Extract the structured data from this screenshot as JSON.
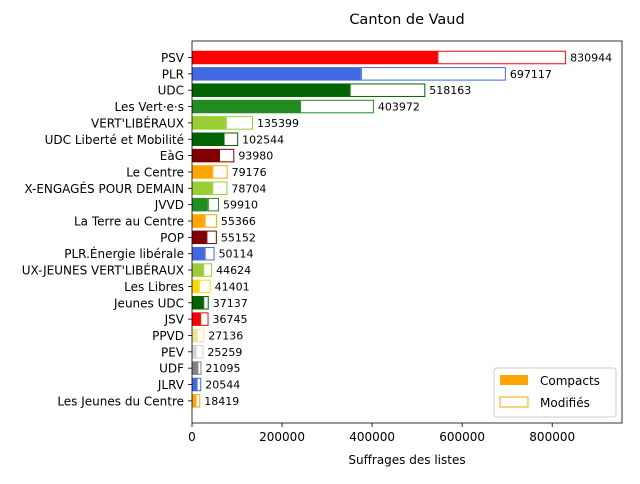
{
  "chart_data": {
    "type": "bar",
    "orientation": "horizontal",
    "stacked": true,
    "title": "Canton de Vaud",
    "xlabel": "Suffrages des listes",
    "ylabel": "",
    "xlim": [
      0,
      955000
    ],
    "xticks": [
      0,
      200000,
      400000,
      600000,
      800000
    ],
    "xtick_labels": [
      "0",
      "200000",
      "400000",
      "600000",
      "800000"
    ],
    "legend": {
      "placement": "lower-right",
      "entries": [
        {
          "label": "Compacts",
          "style": "filled",
          "color": "#ffa500"
        },
        {
          "label": "Modifiés",
          "style": "outline",
          "color": "#ffa500"
        }
      ]
    },
    "categories": [
      {
        "label": "PSV",
        "compact": 545000,
        "total": 830944,
        "total_label": "830944",
        "color": "#ff0000"
      },
      {
        "label": "PLR",
        "compact": 375000,
        "total": 697117,
        "total_label": "697117",
        "color": "#4169e1"
      },
      {
        "label": "UDC",
        "compact": 350000,
        "total": 518163,
        "total_label": "518163",
        "color": "#006400"
      },
      {
        "label": "Les Vert·e·s",
        "compact": 240000,
        "total": 403972,
        "total_label": "403972",
        "color": "#228b22"
      },
      {
        "label": "VERT'LIBÉRAUX",
        "compact": 75000,
        "total": 135399,
        "total_label": "135399",
        "color": "#9acd32"
      },
      {
        "label": "UDC Liberté et Mobilité",
        "compact": 70000,
        "total": 102544,
        "total_label": "102544",
        "color": "#006400"
      },
      {
        "label": "EàG",
        "compact": 60000,
        "total": 93980,
        "total_label": "93980",
        "color": "#800000"
      },
      {
        "label": "Le Centre",
        "compact": 45000,
        "total": 79176,
        "total_label": "79176",
        "color": "#ffa500"
      },
      {
        "label": "X-ENGAGÉS POUR DEMAIN",
        "compact": 45000,
        "total": 78704,
        "total_label": "78704",
        "color": "#9acd32"
      },
      {
        "label": "JVVD",
        "compact": 35000,
        "total": 59910,
        "total_label": "59910",
        "color": "#228b22"
      },
      {
        "label": "La Terre au Centre",
        "compact": 28000,
        "total": 55366,
        "total_label": "55366",
        "color": "#ffa500"
      },
      {
        "label": "POP",
        "compact": 32000,
        "total": 55152,
        "total_label": "55152",
        "color": "#800000"
      },
      {
        "label": "PLR.Énergie libérale",
        "compact": 28000,
        "total": 50114,
        "total_label": "50114",
        "color": "#4169e1"
      },
      {
        "label": "UX-JEUNES VERT'LIBÉRAUX",
        "compact": 25000,
        "total": 44624,
        "total_label": "44624",
        "color": "#9acd32"
      },
      {
        "label": "Les Libres",
        "compact": 15000,
        "total": 41401,
        "total_label": "41401",
        "color": "#ffd700"
      },
      {
        "label": "Jeunes UDC",
        "compact": 25000,
        "total": 37137,
        "total_label": "37137",
        "color": "#006400"
      },
      {
        "label": "JSV",
        "compact": 18000,
        "total": 36745,
        "total_label": "36745",
        "color": "#ff0000"
      },
      {
        "label": "PPVD",
        "compact": 10000,
        "total": 27136,
        "total_label": "27136",
        "color": "#f0e68c"
      },
      {
        "label": "PEV",
        "compact": 8000,
        "total": 25259,
        "total_label": "25259",
        "color": "#d3d3d3"
      },
      {
        "label": "UDF",
        "compact": 12000,
        "total": 21095,
        "total_label": "21095",
        "color": "#808080"
      },
      {
        "label": "JLRV",
        "compact": 10000,
        "total": 20544,
        "total_label": "20544",
        "color": "#4169e1"
      },
      {
        "label": "Les Jeunes du Centre",
        "compact": 8000,
        "total": 18419,
        "total_label": "18419",
        "color": "#ffa500"
      }
    ]
  }
}
